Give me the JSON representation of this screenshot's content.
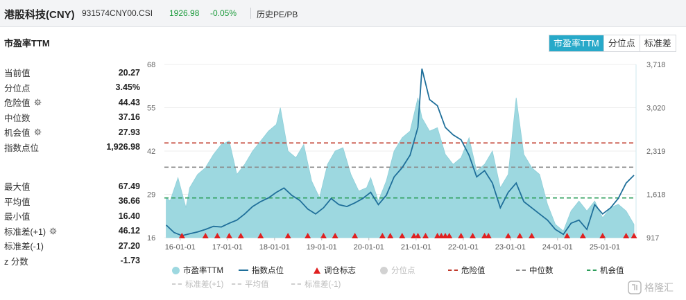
{
  "header": {
    "name": "港股科技(CNY)",
    "code": "931574CNY00.CSI",
    "price": "1926.98",
    "change": "-0.05%",
    "link": "历史PE/PB"
  },
  "panel_title": "市盈率TTM",
  "tabs": [
    "市盈率TTM",
    "分位点",
    "标准差"
  ],
  "stats_top": [
    {
      "label": "当前值",
      "value": "20.27",
      "gear": false
    },
    {
      "label": "分位点",
      "value": "3.45%",
      "gear": false
    },
    {
      "label": "危险值",
      "value": "44.43",
      "gear": true
    },
    {
      "label": "中位数",
      "value": "37.16",
      "gear": false
    },
    {
      "label": "机会值",
      "value": "27.93",
      "gear": true
    },
    {
      "label": "指数点位",
      "value": "1,926.98",
      "gear": false
    }
  ],
  "stats_bottom": [
    {
      "label": "最大值",
      "value": "67.49",
      "gear": false
    },
    {
      "label": "平均值",
      "value": "36.66",
      "gear": false
    },
    {
      "label": "最小值",
      "value": "16.40",
      "gear": false
    },
    {
      "label": "标准差(+1)",
      "value": "46.12",
      "gear": true
    },
    {
      "label": "标准差(-1)",
      "value": "27.20",
      "gear": false
    },
    {
      "label": "z 分数",
      "value": "-1.73",
      "gear": false
    }
  ],
  "legend": {
    "pe": "市盈率TTM",
    "index": "指数点位",
    "adjust": "调仓标志",
    "pct": "分位点",
    "danger": "危险值",
    "median": "中位数",
    "opportunity": "机会值",
    "std_plus": "标准差(+1)",
    "mean": "平均值",
    "std_minus": "标准差(-1)"
  },
  "colors": {
    "pe_fill": "#9dd8e0",
    "index_line": "#1f6f9a",
    "danger": "#c0392b",
    "median": "#8a8a8a",
    "opportunity": "#2e9e5b",
    "adjust_marker": "#e02020",
    "grey": "#c8c8c8",
    "tab_active": "#27a9c9"
  },
  "watermark": "格隆汇",
  "chart_data": {
    "type": "area",
    "x_ticks": [
      "16-01-01",
      "17-01-01",
      "18-01-01",
      "19-01-01",
      "20-01-01",
      "21-01-01",
      "22-01-01",
      "23-01-01",
      "24-01-01",
      "25-01-01"
    ],
    "x_range": [
      "2015-09-01",
      "2025-08-31"
    ],
    "y_left": {
      "min": 16,
      "max": 68,
      "ticks": [
        16,
        29,
        42,
        55,
        68
      ]
    },
    "y_right": {
      "min": 917,
      "max": 3718,
      "ticks": [
        "917",
        "1,618",
        "2,319",
        "3,020",
        "3,718"
      ]
    },
    "reference_lines": {
      "danger": 44.43,
      "median": 37.16,
      "opportunity": 27.93
    },
    "series": [
      {
        "name": "市盈率TTM",
        "axis": "left",
        "x": [
          "2015-09",
          "2015-10",
          "2015-12",
          "2016-02",
          "2016-03",
          "2016-05",
          "2016-07",
          "2016-09",
          "2016-11",
          "2017-01",
          "2017-03",
          "2017-05",
          "2017-07",
          "2017-09",
          "2017-11",
          "2018-01",
          "2018-02",
          "2018-04",
          "2018-06",
          "2018-08",
          "2018-10",
          "2018-12",
          "2019-02",
          "2019-04",
          "2019-06",
          "2019-08",
          "2019-10",
          "2019-12",
          "2020-01",
          "2020-03",
          "2020-05",
          "2020-07",
          "2020-09",
          "2020-11",
          "2021-01",
          "2021-02",
          "2021-04",
          "2021-06",
          "2021-08",
          "2021-10",
          "2021-12",
          "2022-02",
          "2022-04",
          "2022-06",
          "2022-08",
          "2022-10",
          "2022-12",
          "2023-02",
          "2023-04",
          "2023-06",
          "2023-08",
          "2023-10",
          "2023-12",
          "2024-02",
          "2024-04",
          "2024-06",
          "2024-08",
          "2024-10",
          "2024-12",
          "2025-02",
          "2025-04",
          "2025-06",
          "2025-08"
        ],
        "values": [
          28,
          27,
          34,
          25,
          31,
          35,
          37,
          41,
          44,
          45,
          35,
          38,
          42,
          45,
          48,
          50,
          55,
          42,
          40,
          44,
          33,
          28,
          38,
          42,
          43,
          35,
          30,
          31,
          34,
          27,
          33,
          42,
          46,
          48,
          58,
          52,
          48,
          49,
          41,
          38,
          40,
          46,
          36,
          38,
          42,
          31,
          35,
          58,
          41,
          37,
          35,
          26,
          20,
          18,
          24,
          27,
          24,
          27,
          22,
          25,
          26,
          24,
          20
        ]
      },
      {
        "name": "指数点位",
        "axis": "right",
        "x": [
          "2015-09",
          "2015-11",
          "2016-01",
          "2016-03",
          "2016-05",
          "2016-07",
          "2016-09",
          "2016-11",
          "2017-01",
          "2017-03",
          "2017-05",
          "2017-07",
          "2017-09",
          "2017-11",
          "2018-01",
          "2018-03",
          "2018-05",
          "2018-07",
          "2018-09",
          "2018-11",
          "2019-01",
          "2019-03",
          "2019-05",
          "2019-07",
          "2019-09",
          "2019-11",
          "2020-01",
          "2020-03",
          "2020-05",
          "2020-07",
          "2020-09",
          "2020-11",
          "2021-01",
          "2021-02",
          "2021-04",
          "2021-06",
          "2021-08",
          "2021-10",
          "2021-12",
          "2022-02",
          "2022-04",
          "2022-06",
          "2022-08",
          "2022-10",
          "2022-12",
          "2023-02",
          "2023-04",
          "2023-06",
          "2023-08",
          "2023-10",
          "2023-12",
          "2024-02",
          "2024-04",
          "2024-06",
          "2024-08",
          "2024-10",
          "2024-12",
          "2025-02",
          "2025-04",
          "2025-06",
          "2025-08"
        ],
        "values": [
          1120,
          1000,
          950,
          980,
          1010,
          1050,
          1100,
          1090,
          1150,
          1200,
          1300,
          1420,
          1500,
          1560,
          1650,
          1720,
          1600,
          1520,
          1380,
          1300,
          1400,
          1550,
          1450,
          1420,
          1480,
          1550,
          1650,
          1450,
          1600,
          1900,
          2050,
          2250,
          2700,
          3650,
          3150,
          3050,
          2700,
          2580,
          2500,
          2250,
          1900,
          2000,
          1800,
          1400,
          1650,
          1800,
          1500,
          1400,
          1300,
          1200,
          1050,
          970,
          1150,
          1200,
          1050,
          1450,
          1300,
          1400,
          1550,
          1800,
          1927
        ]
      }
    ],
    "adjust_markers": [
      "2016-01",
      "2016-07",
      "2016-10",
      "2017-01",
      "2017-04",
      "2017-09",
      "2018-04",
      "2018-09",
      "2019-01",
      "2019-04",
      "2019-09",
      "2020-04",
      "2020-06",
      "2020-09",
      "2020-12",
      "2021-01",
      "2021-03",
      "2021-06",
      "2021-07",
      "2021-08",
      "2021-09",
      "2021-12",
      "2022-03",
      "2022-06",
      "2022-07",
      "2022-12",
      "2023-03",
      "2023-06",
      "2024-03",
      "2024-07",
      "2024-12",
      "2025-06",
      "2025-08"
    ]
  }
}
